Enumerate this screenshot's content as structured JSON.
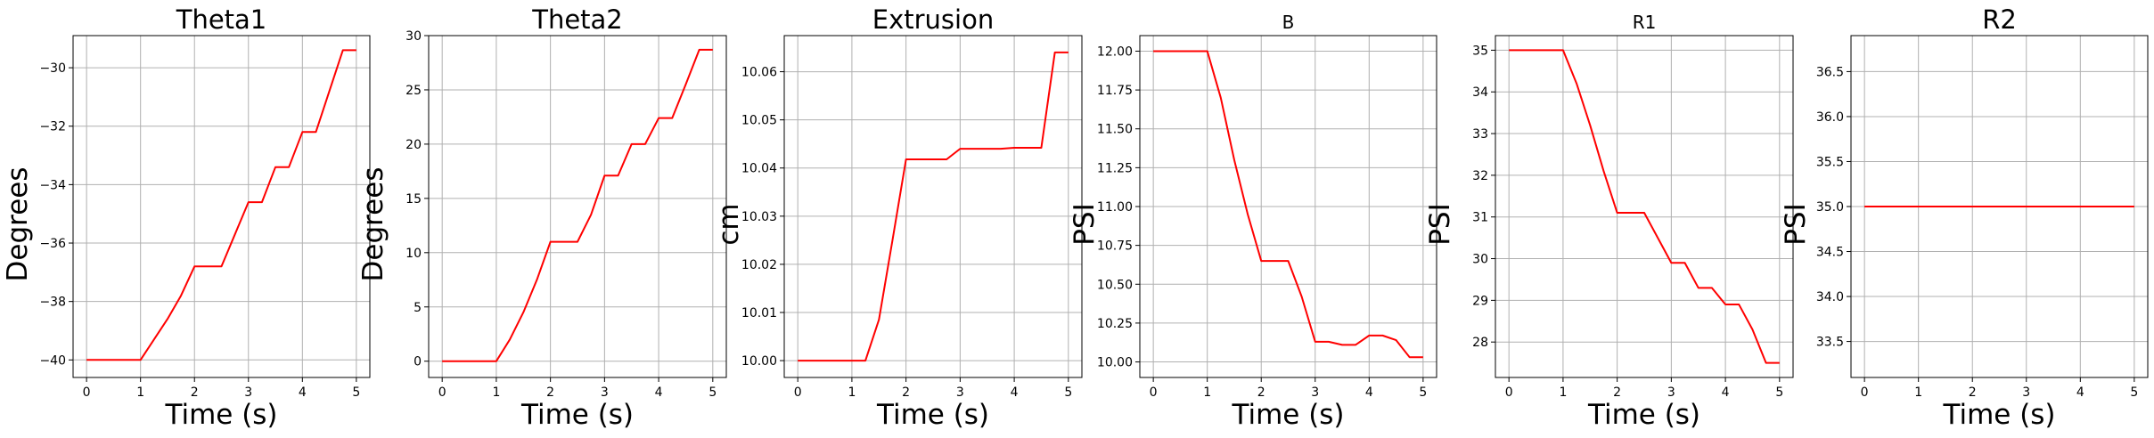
{
  "chart_data": [
    {
      "type": "line",
      "title": "Theta1",
      "xlabel": "Time (s)",
      "ylabel": "Degrees",
      "xlim": [
        -0.25,
        5.25
      ],
      "ylim": [
        -40.6,
        -28.9
      ],
      "xticks": [
        0,
        1,
        2,
        3,
        4,
        5
      ],
      "yticks": [
        -40,
        -38,
        -36,
        -34,
        -32,
        -30
      ],
      "grid": true,
      "series_color": "#ff0000",
      "x": [
        0,
        1,
        1.25,
        1.5,
        1.75,
        2,
        2.25,
        2.5,
        2.75,
        3,
        3.25,
        3.5,
        3.75,
        4,
        4.25,
        4.5,
        4.75,
        5
      ],
      "y": [
        -40,
        -40,
        -39.3,
        -38.6,
        -37.8,
        -36.8,
        -36.8,
        -36.8,
        -35.7,
        -34.6,
        -34.6,
        -33.4,
        -33.4,
        -32.2,
        -32.2,
        -30.8,
        -29.4,
        -29.4
      ]
    },
    {
      "type": "line",
      "title": "Theta2",
      "xlabel": "Time (s)",
      "ylabel": "Degrees",
      "xlim": [
        -0.25,
        5.25
      ],
      "ylim": [
        -1.5,
        30
      ],
      "xticks": [
        0,
        1,
        2,
        3,
        4,
        5
      ],
      "yticks": [
        0,
        5,
        10,
        15,
        20,
        25,
        30
      ],
      "grid": true,
      "series_color": "#ff0000",
      "x": [
        0,
        1,
        1.25,
        1.5,
        1.75,
        2,
        2.25,
        2.5,
        2.75,
        3,
        3.25,
        3.5,
        3.75,
        4,
        4.25,
        4.5,
        4.75,
        5
      ],
      "y": [
        0,
        0,
        2,
        4.5,
        7.5,
        11,
        11,
        11,
        13.5,
        17.1,
        17.1,
        20,
        20,
        22.4,
        22.4,
        25.5,
        28.7,
        28.7
      ]
    },
    {
      "type": "line",
      "title": "Extrusion",
      "xlabel": "Time (s)",
      "ylabel": "cm",
      "xlim": [
        -0.25,
        5.25
      ],
      "ylim": [
        9.9965,
        10.0675
      ],
      "xticks": [
        0,
        1,
        2,
        3,
        4,
        5
      ],
      "yticks": [
        10.0,
        10.01,
        10.02,
        10.03,
        10.04,
        10.05,
        10.06
      ],
      "ytick_labels": [
        "10.00",
        "10.01",
        "10.02",
        "10.03",
        "10.04",
        "10.05",
        "10.06"
      ],
      "grid": true,
      "series_color": "#ff0000",
      "x": [
        0,
        1,
        1.25,
        1.5,
        1.75,
        2,
        2.25,
        2.5,
        2.75,
        3,
        3.25,
        3.5,
        3.75,
        4,
        4.25,
        4.5,
        4.75,
        5
      ],
      "y": [
        10.0,
        10.0,
        10.0,
        10.0085,
        10.025,
        10.0418,
        10.0418,
        10.0418,
        10.0418,
        10.044,
        10.044,
        10.044,
        10.044,
        10.0442,
        10.0442,
        10.0442,
        10.064,
        10.064
      ]
    },
    {
      "type": "line",
      "title": "B",
      "xlabel": "Time (s)",
      "ylabel": "PSI",
      "xlim": [
        -0.25,
        5.25
      ],
      "ylim": [
        9.9,
        12.1
      ],
      "xticks": [
        0,
        1,
        2,
        3,
        4,
        5
      ],
      "yticks": [
        10.0,
        10.25,
        10.5,
        10.75,
        11.0,
        11.25,
        11.5,
        11.75,
        12.0
      ],
      "ytick_labels": [
        "10.00",
        "10.25",
        "10.50",
        "10.75",
        "11.00",
        "11.25",
        "11.50",
        "11.75",
        "12.00"
      ],
      "grid": true,
      "series_color": "#ff0000",
      "x": [
        0,
        1,
        1.25,
        1.5,
        1.75,
        2,
        2.25,
        2.5,
        2.75,
        3,
        3.25,
        3.5,
        3.75,
        4,
        4.25,
        4.5,
        4.75,
        5
      ],
      "y": [
        12.0,
        12.0,
        11.7,
        11.3,
        10.95,
        10.65,
        10.65,
        10.65,
        10.42,
        10.13,
        10.13,
        10.11,
        10.11,
        10.17,
        10.17,
        10.14,
        10.03,
        10.03
      ]
    },
    {
      "type": "line",
      "title": "R1",
      "xlabel": "Time (s)",
      "ylabel": "PSI",
      "xlim": [
        -0.25,
        5.25
      ],
      "ylim": [
        27.15,
        35.35
      ],
      "xticks": [
        0,
        1,
        2,
        3,
        4,
        5
      ],
      "yticks": [
        28,
        29,
        30,
        31,
        32,
        33,
        34,
        35
      ],
      "grid": true,
      "series_color": "#ff0000",
      "x": [
        0,
        1,
        1.25,
        1.5,
        1.75,
        2,
        2.25,
        2.5,
        2.75,
        3,
        3.25,
        3.5,
        3.75,
        4,
        4.25,
        4.5,
        4.75,
        5
      ],
      "y": [
        35.0,
        35.0,
        34.2,
        33.2,
        32.1,
        31.1,
        31.1,
        31.1,
        30.5,
        29.9,
        29.9,
        29.3,
        29.3,
        28.9,
        28.9,
        28.3,
        27.5,
        27.5
      ]
    },
    {
      "type": "line",
      "title": "R2",
      "xlabel": "Time (s)",
      "ylabel": "PSI",
      "xlim": [
        -0.25,
        5.25
      ],
      "ylim": [
        33.1,
        36.9
      ],
      "xticks": [
        0,
        1,
        2,
        3,
        4,
        5
      ],
      "yticks": [
        33.5,
        34.0,
        34.5,
        35.0,
        35.5,
        36.0,
        36.5
      ],
      "ytick_labels": [
        "33.5",
        "34.0",
        "34.5",
        "35.0",
        "35.5",
        "36.0",
        "36.5"
      ],
      "grid": true,
      "series_color": "#ff0000",
      "x": [
        0,
        5
      ],
      "y": [
        35.0,
        35.0
      ]
    }
  ]
}
